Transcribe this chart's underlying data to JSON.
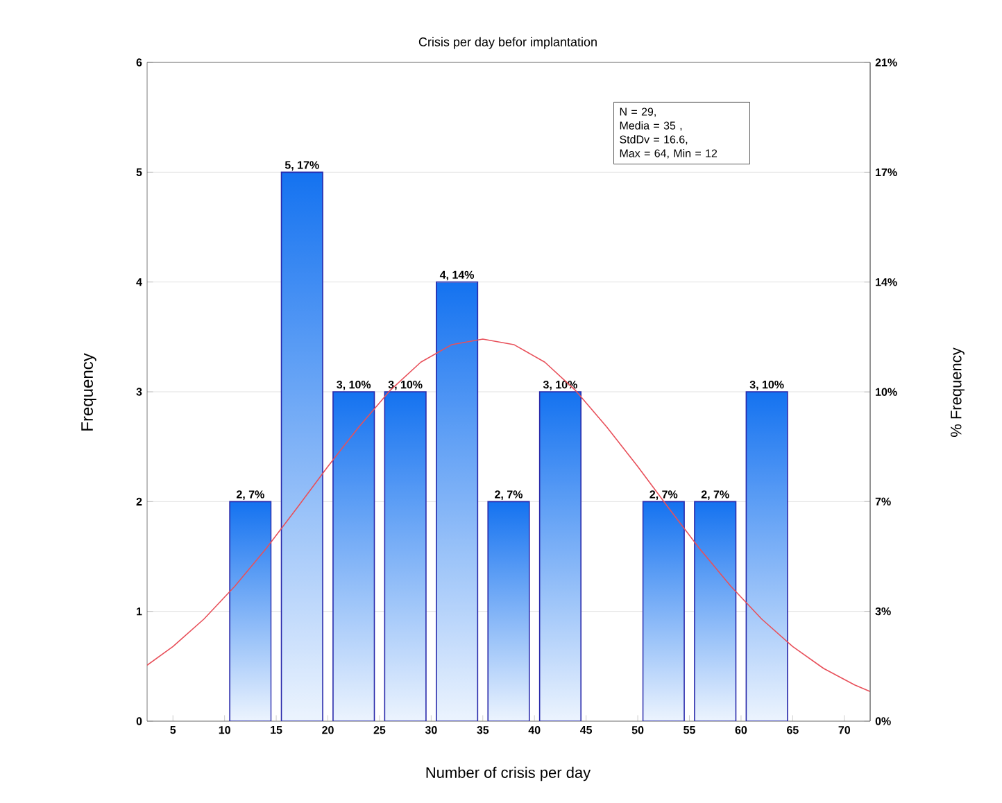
{
  "chart_data": {
    "type": "histogram",
    "title": "Crisis per day befor implantation",
    "xlabel": "Number of crisis per day",
    "ylabel": "Frequency",
    "y2label": "% Frequency",
    "bins": [
      10,
      15,
      20,
      25,
      30,
      35,
      40,
      45,
      50,
      55,
      60,
      65
    ],
    "values": [
      2,
      5,
      3,
      3,
      4,
      2,
      3,
      0,
      2,
      2,
      3
    ],
    "value_labels": [
      "2, 7%",
      "5, 17%",
      "3, 10%",
      "3, 10%",
      "4, 14%",
      "2, 7%",
      "3, 10%",
      null,
      "2, 7%",
      "2, 7%",
      "3, 10%"
    ],
    "color": "#1472f0",
    "series": [
      {
        "type": "line",
        "color": "#e8505a",
        "x": [
          2.5,
          5,
          8,
          11,
          14,
          17,
          20,
          23,
          26,
          29,
          32,
          35,
          38,
          41,
          44,
          47,
          50,
          53,
          56,
          59,
          62,
          65,
          68,
          71,
          72.5
        ],
        "values": [
          0.51,
          0.68,
          0.93,
          1.23,
          1.57,
          1.94,
          2.32,
          2.68,
          3.01,
          3.27,
          3.43,
          3.48,
          3.43,
          3.27,
          3.01,
          2.68,
          2.32,
          1.94,
          1.57,
          1.23,
          0.93,
          0.68,
          0.48,
          0.33,
          0.27
        ]
      }
    ],
    "xlim": [
      2.5,
      72.5
    ],
    "xticks": [
      5,
      10,
      15,
      20,
      25,
      30,
      35,
      40,
      45,
      50,
      55,
      60,
      65,
      70
    ],
    "ylim": [
      0,
      6
    ],
    "yticks": [
      0,
      1,
      2,
      3,
      4,
      5,
      6
    ],
    "y2lim": [
      0,
      20.69
    ],
    "y2ticks": [
      {
        "value": 0,
        "label": "0%"
      },
      {
        "value": 3.45,
        "label": "3%"
      },
      {
        "value": 6.9,
        "label": "7%"
      },
      {
        "value": 10.34,
        "label": "10%"
      },
      {
        "value": 13.79,
        "label": "14%"
      },
      {
        "value": 17.24,
        "label": "17%"
      },
      {
        "value": 20.69,
        "label": "21%"
      }
    ],
    "grid": "y",
    "annotations": [
      "N = 29,",
      "Media = 35 ,",
      "StdDv = 16.6,",
      "Max = 64, Min = 12"
    ]
  }
}
